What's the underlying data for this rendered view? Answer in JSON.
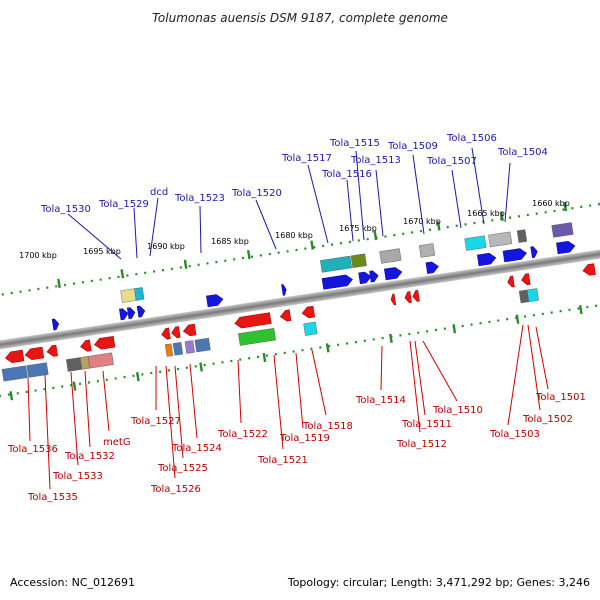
{
  "title": "Tolumonas auensis DSM 9187, complete genome",
  "footer": {
    "accession": "Accession: NC_012691",
    "summary": "Topology: circular; Length: 3,471,292 bp; Genes: 3,246"
  },
  "colors": {
    "forward_label": "#1a1aa6",
    "reverse_label": "#b50000",
    "backbone": "#8c8c8c",
    "tick": "#2a8a2a",
    "forward_gene": "#1515e0",
    "reverse_gene": "#e81515"
  },
  "scale_labels": [
    "1660 kbp",
    "1665 kbp",
    "1670 kbp",
    "1675 kbp",
    "1680 kbp",
    "1685 kbp",
    "1690 kbp",
    "1695 kbp",
    "1700 kbp"
  ],
  "forward_labels": [
    "Tola_1504",
    "Tola_1506",
    "Tola_1507",
    "Tola_1509",
    "Tola_1513",
    "Tola_1515",
    "Tola_1516",
    "Tola_1517",
    "Tola_1520",
    "Tola_1523",
    "dcd",
    "Tola_1529",
    "Tola_1530"
  ],
  "reverse_labels": [
    "Tola_1501",
    "Tola_1502",
    "Tola_1503",
    "Tola_1510",
    "Tola_1511",
    "Tola_1512",
    "Tola_1514",
    "Tola_1518",
    "Tola_1519",
    "Tola_1521",
    "Tola_1522",
    "Tola_1524",
    "Tola_1525",
    "Tola_1526",
    "Tola_1527",
    "metG",
    "Tola_1532",
    "Tola_1533",
    "Tola_1535",
    "Tola_1536"
  ]
}
